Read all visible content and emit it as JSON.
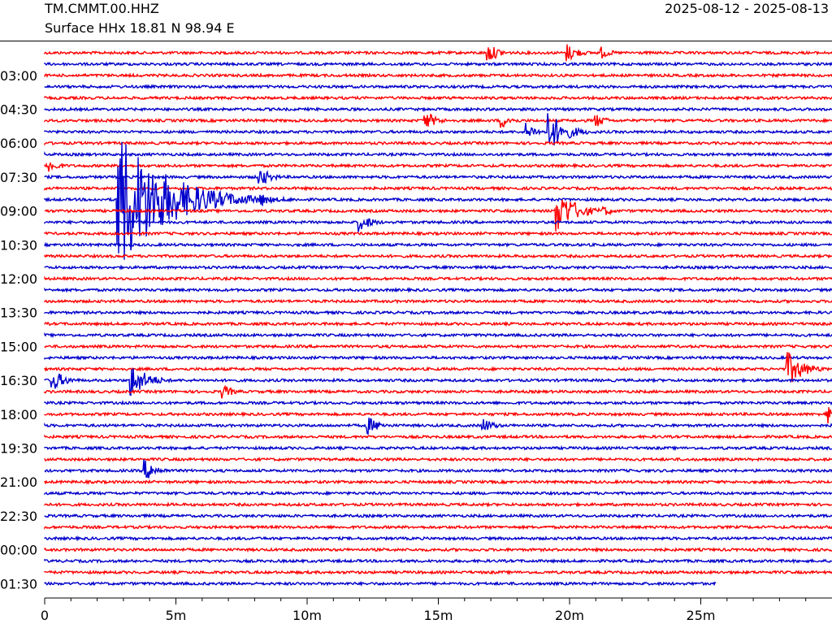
{
  "header": {
    "station": "TM.CMMT.00.HHZ",
    "location": "Surface HHx  18.81 N 98.94 E",
    "date_range": "2025-08-12 - 2025-08-13"
  },
  "chart_data": {
    "type": "helicorder",
    "title": "TM.CMMT.00.HHZ",
    "subtitle": "Surface HHx  18.81 N 98.94 E",
    "date_range": "2025-08-12 - 2025-08-13",
    "line_duration_minutes": 30,
    "x_range_minutes": [
      0,
      30
    ],
    "x_ticks": [
      {
        "value": 0,
        "label": "0"
      },
      {
        "value": 5,
        "label": "5m"
      },
      {
        "value": 10,
        "label": "10m"
      },
      {
        "value": 15,
        "label": "15m"
      },
      {
        "value": 20,
        "label": "20m"
      },
      {
        "value": 25,
        "label": "25m"
      }
    ],
    "x_minor_tick_step_minutes": 1,
    "y_tick_labels": [
      "03:00",
      "04:30",
      "06:00",
      "07:30",
      "09:00",
      "10:30",
      "12:00",
      "13:30",
      "15:00",
      "16:30",
      "18:00",
      "19:30",
      "21:00",
      "22:30",
      "00:00",
      "01:30"
    ],
    "trace_count": 48,
    "trace_colors": [
      "#ff0000",
      "#0000cc"
    ],
    "last_trace_end_minutes": 25.6,
    "events": [
      {
        "trace": 0,
        "minute": 16.9,
        "amplitude": 12
      },
      {
        "trace": 0,
        "minute": 19.9,
        "amplitude": 12
      },
      {
        "trace": 0,
        "minute": 21.2,
        "amplitude": 8
      },
      {
        "trace": 6,
        "minute": 14.5,
        "amplitude": 12
      },
      {
        "trace": 6,
        "minute": 17.4,
        "amplitude": 10
      },
      {
        "trace": 6,
        "minute": 21.0,
        "amplitude": 9
      },
      {
        "trace": 7,
        "minute": 18.3,
        "amplitude": 12
      },
      {
        "trace": 7,
        "minute": 19.2,
        "amplitude": 25
      },
      {
        "trace": 10,
        "minute": 0.1,
        "amplitude": 10
      },
      {
        "trace": 11,
        "minute": 8.2,
        "amplitude": 12
      },
      {
        "trace": 13,
        "minute": 2.8,
        "amplitude": 90
      },
      {
        "trace": 13,
        "minute": 4.6,
        "amplitude": 25
      },
      {
        "trace": 13,
        "minute": 8.2,
        "amplitude": 10
      },
      {
        "trace": 14,
        "minute": 19.5,
        "amplitude": 28
      },
      {
        "trace": 14,
        "minute": 21.3,
        "amplitude": 7
      },
      {
        "trace": 15,
        "minute": 12.0,
        "amplitude": 12
      },
      {
        "trace": 29,
        "minute": 0.3,
        "amplitude": 14
      },
      {
        "trace": 29,
        "minute": 3.3,
        "amplitude": 22
      },
      {
        "trace": 28,
        "minute": 28.3,
        "amplitude": 22
      },
      {
        "trace": 28,
        "minute": 28.7,
        "amplitude": 10
      },
      {
        "trace": 30,
        "minute": 6.8,
        "amplitude": 9
      },
      {
        "trace": 33,
        "minute": 12.3,
        "amplitude": 12
      },
      {
        "trace": 33,
        "minute": 16.7,
        "amplitude": 10
      },
      {
        "trace": 32,
        "minute": 29.8,
        "amplitude": 14
      },
      {
        "trace": 37,
        "minute": 3.8,
        "amplitude": 14
      }
    ]
  }
}
